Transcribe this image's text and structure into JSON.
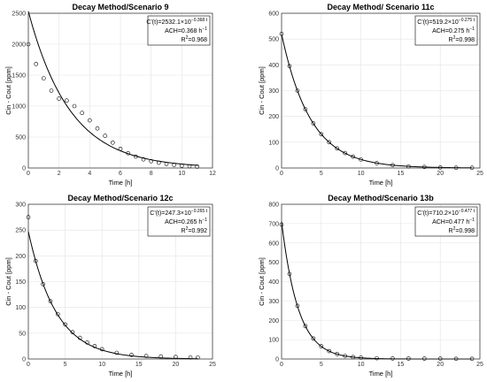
{
  "chart_data": [
    {
      "type": "scatter",
      "title": "Decay Method/Scenario 9",
      "xlabel": "Time [h]",
      "ylabel": "Cin - Cout [ppm]",
      "xlim": [
        0,
        12
      ],
      "ylim": [
        0,
        2500
      ],
      "xticks": [
        0,
        2,
        4,
        6,
        8,
        10,
        12
      ],
      "yticks": [
        0,
        500,
        1000,
        1500,
        2000,
        2500
      ],
      "grid": true,
      "annotation": {
        "lines": [
          {
            "base": "C'(t)=2532.1×10",
            "sup": "−0.368 t"
          },
          {
            "base": "ACH=0.368 h",
            "sup": "−1"
          },
          {
            "base": "R",
            "sup": "2",
            "tail": "=0.968"
          }
        ],
        "position": "top-right"
      },
      "fit": {
        "a": 2532.1,
        "k": 0.368,
        "t_range": [
          0,
          11.1
        ]
      },
      "series": [
        {
          "marker": "circle",
          "x": [
            0,
            0.5,
            1,
            1.5,
            2,
            2.5,
            3,
            3.5,
            4,
            4.5,
            5,
            5.5,
            6,
            6.5,
            7,
            7.5,
            8,
            8.5,
            9,
            9.5,
            10,
            10.5,
            11
          ],
          "y": [
            2000,
            1680,
            1450,
            1250,
            1120,
            1090,
            1000,
            890,
            770,
            640,
            520,
            410,
            310,
            240,
            185,
            140,
            110,
            85,
            65,
            50,
            38,
            28,
            22
          ]
        }
      ]
    },
    {
      "type": "scatter",
      "title": "Decay Method/ Scenario 11c",
      "xlabel": "Time [h]",
      "ylabel": "Cin - Cout [ppm]",
      "xlim": [
        0,
        25
      ],
      "ylim": [
        0,
        600
      ],
      "xticks": [
        0,
        5,
        10,
        15,
        20,
        25
      ],
      "yticks": [
        0,
        100,
        200,
        300,
        400,
        500,
        600
      ],
      "grid": true,
      "annotation": {
        "lines": [
          {
            "base": "C'(t)=519.2×10",
            "sup": "−0.275 t"
          },
          {
            "base": "ACH=0.275 h",
            "sup": "−1"
          },
          {
            "base": "R",
            "sup": "2",
            "tail": "=0.998"
          }
        ],
        "position": "top-right"
      },
      "fit": {
        "a": 519.2,
        "k": 0.275,
        "t_range": [
          0,
          24
        ]
      },
      "series": [
        {
          "marker": "circle",
          "x": [
            0,
            1,
            2,
            3,
            4,
            5,
            6,
            7,
            8,
            9,
            10,
            12,
            14,
            16,
            18,
            20,
            22,
            24
          ],
          "y": [
            520,
            395,
            300,
            228,
            173,
            131,
            100,
            76,
            58,
            44,
            33,
            19,
            11,
            6,
            4,
            2,
            1,
            1
          ]
        }
      ]
    },
    {
      "type": "scatter",
      "title": "Decay Method/Scenario 12c",
      "xlabel": "Time [h]",
      "ylabel": "Cin - Cout [ppm]",
      "xlim": [
        0,
        25
      ],
      "ylim": [
        0,
        300
      ],
      "xticks": [
        0,
        5,
        10,
        15,
        20,
        25
      ],
      "yticks": [
        0,
        50,
        100,
        150,
        200,
        250,
        300
      ],
      "grid": true,
      "annotation": {
        "lines": [
          {
            "base": "C'(t)=247.3×10",
            "sup": "−0.265 t"
          },
          {
            "base": "ACH=0.265 h",
            "sup": "−1"
          },
          {
            "base": "R",
            "sup": "2",
            "tail": "=0.992"
          }
        ],
        "position": "top-right"
      },
      "fit": {
        "a": 247.3,
        "k": 0.265,
        "t_range": [
          0,
          23
        ]
      },
      "series": [
        {
          "marker": "circle",
          "x": [
            0,
            1,
            2,
            3,
            4,
            5,
            6,
            7,
            8,
            9,
            10,
            12,
            14,
            16,
            18,
            20,
            22,
            23
          ],
          "y": [
            275,
            190,
            145,
            112,
            87,
            67,
            52,
            41,
            32,
            25,
            19,
            12,
            8,
            6,
            5,
            4,
            3,
            3
          ]
        }
      ]
    },
    {
      "type": "scatter",
      "title": "Decay Method/Scenario 13b",
      "xlabel": "Time [h]",
      "ylabel": "Cin - Cout [ppm]",
      "xlim": [
        0,
        25
      ],
      "ylim": [
        0,
        800
      ],
      "xticks": [
        0,
        5,
        10,
        15,
        20,
        25
      ],
      "yticks": [
        0,
        100,
        200,
        300,
        400,
        500,
        600,
        700,
        800
      ],
      "grid": true,
      "annotation": {
        "lines": [
          {
            "base": "C'(t)=710.2×10",
            "sup": "−0.477 t"
          },
          {
            "base": "ACH=0.477 h",
            "sup": "−1"
          },
          {
            "base": "R",
            "sup": "2",
            "tail": "=0.998"
          }
        ],
        "position": "top-right"
      },
      "fit": {
        "a": 710.2,
        "k": 0.477,
        "t_range": [
          0,
          24
        ]
      },
      "series": [
        {
          "marker": "circle",
          "x": [
            0,
            1,
            2,
            3,
            4,
            5,
            6,
            7,
            8,
            9,
            10,
            12,
            14,
            16,
            18,
            20,
            22,
            24
          ],
          "y": [
            695,
            440,
            275,
            170,
            106,
            66,
            41,
            26,
            16,
            10,
            7,
            4,
            3,
            2,
            2,
            2,
            1,
            1
          ]
        }
      ]
    }
  ]
}
